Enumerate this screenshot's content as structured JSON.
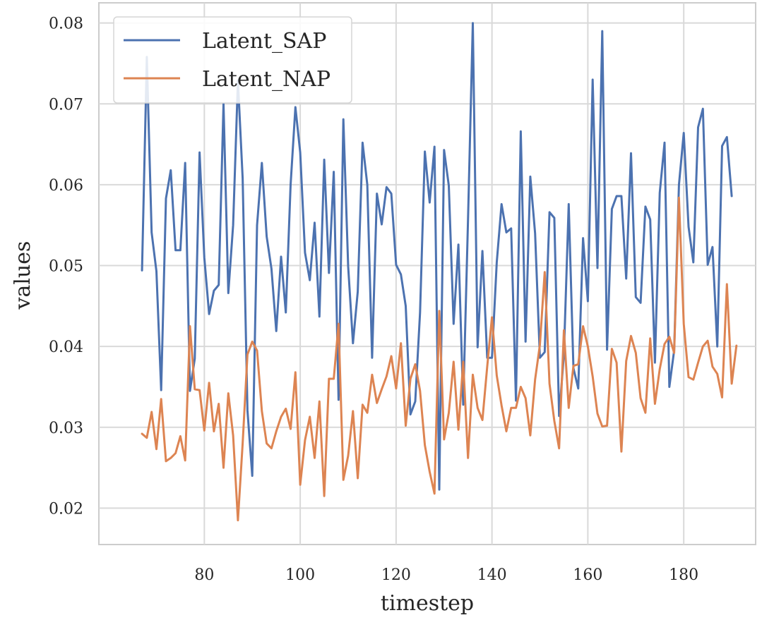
{
  "chart_data": {
    "type": "line",
    "title": "",
    "xlabel": "timestep",
    "ylabel": "values",
    "xlim": [
      58,
      195
    ],
    "ylim": [
      0.0155,
      0.0825
    ],
    "xticks": [
      80,
      100,
      120,
      140,
      160,
      180
    ],
    "yticks": [
      0.02,
      0.03,
      0.04,
      0.05,
      0.06,
      0.07,
      0.08
    ],
    "ytick_labels": [
      "0.02",
      "0.03",
      "0.04",
      "0.05",
      "0.06",
      "0.07",
      "0.08"
    ],
    "grid": true,
    "legend_position": "top-left",
    "x_start": 67,
    "series": [
      {
        "name": "Latent_SAP",
        "color": "#4c72b0",
        "values": [
          0.0494,
          0.0758,
          0.0541,
          0.0493,
          0.0346,
          0.0583,
          0.0618,
          0.0519,
          0.0519,
          0.0627,
          0.0345,
          0.0385,
          0.064,
          0.051,
          0.044,
          0.0469,
          0.0476,
          0.07,
          0.0466,
          0.055,
          0.0729,
          0.0608,
          0.0321,
          0.024,
          0.055,
          0.0627,
          0.0536,
          0.0496,
          0.0419,
          0.0511,
          0.0442,
          0.06,
          0.0696,
          0.064,
          0.0516,
          0.0482,
          0.0553,
          0.0437,
          0.0631,
          0.0491,
          0.0616,
          0.0334,
          0.0681,
          0.0499,
          0.0404,
          0.0468,
          0.0652,
          0.06,
          0.0386,
          0.0589,
          0.0551,
          0.0597,
          0.0589,
          0.0501,
          0.0489,
          0.045,
          0.0316,
          0.0332,
          0.0442,
          0.0641,
          0.0578,
          0.0647,
          0.0223,
          0.0643,
          0.0599,
          0.0428,
          0.0526,
          0.0328,
          0.0556,
          0.08,
          0.0399,
          0.0518,
          0.0386,
          0.0386,
          0.0504,
          0.0576,
          0.0541,
          0.0546,
          0.0333,
          0.0666,
          0.0406,
          0.061,
          0.054,
          0.0386,
          0.0393,
          0.0566,
          0.0559,
          0.0314,
          0.039,
          0.0576,
          0.0373,
          0.0348,
          0.0534,
          0.0456,
          0.073,
          0.0497,
          0.079,
          0.0396,
          0.057,
          0.0586,
          0.0586,
          0.0484,
          0.0639,
          0.0461,
          0.0454,
          0.0573,
          0.0557,
          0.038,
          0.059,
          0.0652,
          0.035,
          0.0395,
          0.06,
          0.0664,
          0.0548,
          0.0504,
          0.0671,
          0.0694,
          0.0501,
          0.0523,
          0.04,
          0.0648,
          0.0659,
          0.0586
        ]
      },
      {
        "name": "Latent_NAP",
        "color": "#dd8452",
        "values": [
          0.0292,
          0.0287,
          0.0319,
          0.0273,
          0.0335,
          0.0258,
          0.0262,
          0.0268,
          0.0289,
          0.0259,
          0.0425,
          0.0347,
          0.0346,
          0.0296,
          0.0355,
          0.0295,
          0.0329,
          0.025,
          0.0342,
          0.029,
          0.0185,
          0.028,
          0.039,
          0.0406,
          0.0395,
          0.032,
          0.028,
          0.0274,
          0.0295,
          0.0313,
          0.0323,
          0.0298,
          0.0368,
          0.0229,
          0.0284,
          0.0313,
          0.0262,
          0.0332,
          0.0215,
          0.036,
          0.036,
          0.0428,
          0.0235,
          0.0265,
          0.032,
          0.0237,
          0.0328,
          0.0318,
          0.0365,
          0.033,
          0.0347,
          0.0363,
          0.0388,
          0.0348,
          0.0404,
          0.0302,
          0.036,
          0.0378,
          0.0345,
          0.0278,
          0.0245,
          0.0218,
          0.0444,
          0.0285,
          0.0318,
          0.0381,
          0.0297,
          0.0381,
          0.0262,
          0.0365,
          0.0324,
          0.0309,
          0.0375,
          0.0436,
          0.0364,
          0.0327,
          0.0295,
          0.0324,
          0.0324,
          0.035,
          0.0336,
          0.029,
          0.0359,
          0.0402,
          0.0492,
          0.0354,
          0.0308,
          0.0274,
          0.042,
          0.0324,
          0.0376,
          0.0378,
          0.0425,
          0.04,
          0.0363,
          0.0317,
          0.0301,
          0.0302,
          0.0397,
          0.038,
          0.027,
          0.0382,
          0.0413,
          0.0392,
          0.0336,
          0.0318,
          0.041,
          0.0329,
          0.0372,
          0.0403,
          0.0412,
          0.0392,
          0.0584,
          0.0428,
          0.0362,
          0.0359,
          0.038,
          0.04,
          0.0407,
          0.0375,
          0.0366,
          0.0337,
          0.0477,
          0.0354,
          0.0401
        ]
      }
    ]
  }
}
